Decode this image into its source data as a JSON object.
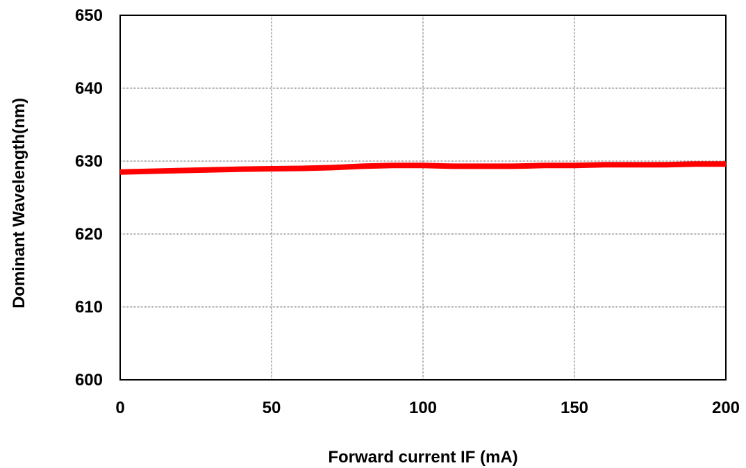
{
  "chart_data": {
    "type": "line",
    "xlabel": "Forward current IF (mA)",
    "ylabel": "Dominant Wavelength(nm)",
    "xlim": [
      0,
      200
    ],
    "ylim": [
      600,
      650
    ],
    "xticks": [
      "0",
      "50",
      "100",
      "150",
      "200"
    ],
    "yticks": [
      "600",
      "610",
      "620",
      "630",
      "640",
      "650"
    ],
    "grid": true,
    "grid_style": "dotted",
    "series": [
      {
        "color": "#ff0000",
        "x": [
          0,
          20,
          40,
          60,
          70,
          80,
          90,
          100,
          110,
          120,
          130,
          140,
          150,
          160,
          170,
          180,
          190,
          200
        ],
        "y": [
          628.5,
          628.7,
          628.9,
          629.0,
          629.1,
          629.3,
          629.4,
          629.4,
          629.3,
          629.3,
          629.3,
          629.4,
          629.4,
          629.5,
          629.5,
          629.5,
          629.6,
          629.6
        ]
      }
    ]
  }
}
